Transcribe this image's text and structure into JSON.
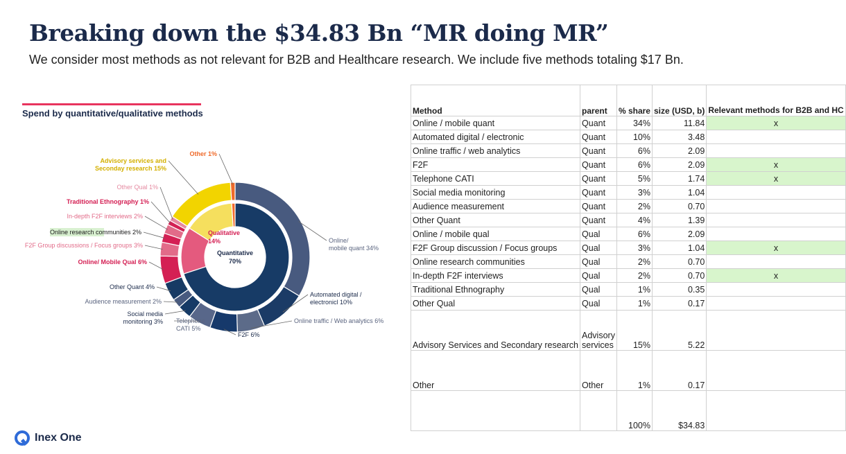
{
  "header": {
    "title": "Breaking down the $34.83 Bn “MR doing MR”",
    "subtitle": "We consider most methods as not relevant for B2B and Healthcare research. We include five methods totaling $17 Bn."
  },
  "chart_data": {
    "type": "pie",
    "title": "Spend by quantitative/qualitative methods",
    "inner": [
      {
        "label": "Quantitative",
        "value_label": "70%",
        "value": 70,
        "color": "#173b66"
      },
      {
        "label": "Qualitative",
        "value_label": "14%",
        "value": 14,
        "color": "#e45a7e"
      },
      {
        "label": "",
        "value": 15,
        "color": "#f5df5e"
      },
      {
        "label": "",
        "value": 1,
        "color": "#f26a2e"
      }
    ],
    "outer": [
      {
        "label": "Online/\nmobile quant 34%",
        "value": 34,
        "color": "#485a7f"
      },
      {
        "label": "Automated digital /\nelectronicl 10%",
        "value": 10,
        "color": "#1b3b66"
      },
      {
        "label": "Online traffic / Web analytics 6%",
        "value": 6,
        "color": "#5c6b89"
      },
      {
        "label": "F2F 6%",
        "value": 6,
        "color": "#16396b"
      },
      {
        "label": "Telephone\nCATI 5%",
        "value": 5,
        "color": "#58678a"
      },
      {
        "label": "Social media\nmonitoring 3%",
        "value": 3,
        "color": "#163a66"
      },
      {
        "label": "Audience measurement 2%",
        "value": 2,
        "color": "#485a7f"
      },
      {
        "label": "Other Quant 4%",
        "value": 4,
        "color": "#173a64"
      },
      {
        "label": "Online/ Mobile Qual 6%",
        "value": 6,
        "color": "#d42054"
      },
      {
        "label": "F2F Group discussions / Focus groups 3%",
        "value": 3,
        "color": "#e26b89"
      },
      {
        "label": "Online research communities 2%",
        "value": 2,
        "color": "#d42054"
      },
      {
        "label": "In-depth F2F interviews 2%",
        "value": 2,
        "color": "#e26b89"
      },
      {
        "label": "Traditional Ethnography 1%",
        "value": 1,
        "color": "#d42054"
      },
      {
        "label": "Other Qual 1%",
        "value": 1,
        "color": "#e58aa1"
      },
      {
        "label": "Advisory services and\nSeconday research 15%",
        "value": 15,
        "color": "#f2d400"
      },
      {
        "label": "Other 1%",
        "value": 1,
        "color": "#ef6a2a"
      }
    ]
  },
  "table": {
    "headers": [
      "Method",
      "parent",
      "% share",
      "size (USD, b)",
      "Relevant methods for B2B and HC"
    ],
    "rows": [
      {
        "method": "Online / mobile quant",
        "parent": "Quant",
        "share": "34%",
        "size": "11.84",
        "mark": "x",
        "relevant": true
      },
      {
        "method": "Automated digital / electronic",
        "parent": "Quant",
        "share": "10%",
        "size": "3.48",
        "mark": "",
        "relevant": false
      },
      {
        "method": "Online traffic / web analytics",
        "parent": "Quant",
        "share": "6%",
        "size": "2.09",
        "mark": "",
        "relevant": false
      },
      {
        "method": "F2F",
        "parent": "Quant",
        "share": "6%",
        "size": "2.09",
        "mark": "x",
        "relevant": true
      },
      {
        "method": "Telephone CATI",
        "parent": "Quant",
        "share": "5%",
        "size": "1.74",
        "mark": "x",
        "relevant": true
      },
      {
        "method": "Social media monitoring",
        "parent": "Quant",
        "share": "3%",
        "size": "1.04",
        "mark": "",
        "relevant": false
      },
      {
        "method": "Audience measurement",
        "parent": "Quant",
        "share": "2%",
        "size": "0.70",
        "mark": "",
        "relevant": false
      },
      {
        "method": "Other Quant",
        "parent": "Quant",
        "share": "4%",
        "size": "1.39",
        "mark": "",
        "relevant": false
      },
      {
        "method": "Online / mobile qual",
        "parent": "Qual",
        "share": "6%",
        "size": "2.09",
        "mark": "",
        "relevant": false
      },
      {
        "method": "F2F Group discussion / Focus groups",
        "parent": "Qual",
        "share": "3%",
        "size": "1.04",
        "mark": "x",
        "relevant": true
      },
      {
        "method": "Online research communities",
        "parent": "Qual",
        "share": "2%",
        "size": "0.70",
        "mark": "",
        "relevant": false
      },
      {
        "method": "In-depth F2F interviews",
        "parent": "Qual",
        "share": "2%",
        "size": "0.70",
        "mark": "x",
        "relevant": true
      },
      {
        "method": "Traditional Ethnography",
        "parent": "Qual",
        "share": "1%",
        "size": "0.35",
        "mark": "",
        "relevant": false
      },
      {
        "method": "Other Qual",
        "parent": "Qual",
        "share": "1%",
        "size": "0.17",
        "mark": "",
        "relevant": false
      }
    ],
    "tall_rows": [
      {
        "method": "Advisory Services and Secondary research",
        "parent": "Advisory services",
        "share": "15%",
        "size": "5.22"
      },
      {
        "method": "Other",
        "parent": "Other",
        "share": "1%",
        "size": "0.17"
      },
      {
        "method": "",
        "parent": "",
        "share": "100%",
        "size": "$34.83"
      }
    ]
  },
  "brand": {
    "logo_text": "Inex One",
    "accent": "#e8345e",
    "navy": "#1b2a4a"
  }
}
